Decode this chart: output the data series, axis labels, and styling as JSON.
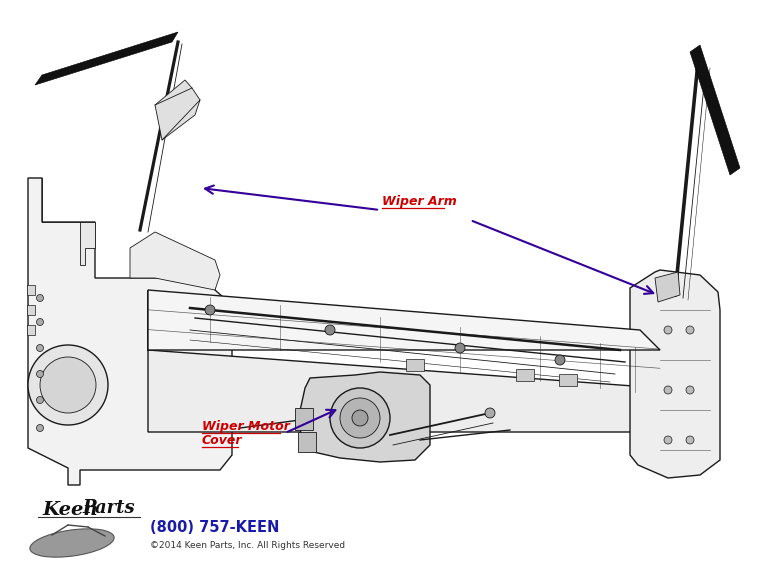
{
  "bg_color": "#ffffff",
  "label_wiper_arm": "Wiper Arm",
  "label_wiper_motor_line1": "Wiper Motor",
  "label_wiper_motor_line2": "Cover",
  "label_color": "#cc0000",
  "arrow_color": "#330099",
  "phone": "(800) 757-KEEN",
  "phone_color": "#1a1aaa",
  "copyright": "©2014 Keen Parts, Inc. All Rights Reserved",
  "copyright_color": "#333333",
  "line_color": "#1a1a1a",
  "fig_width": 7.7,
  "fig_height": 5.79,
  "dpi": 100
}
